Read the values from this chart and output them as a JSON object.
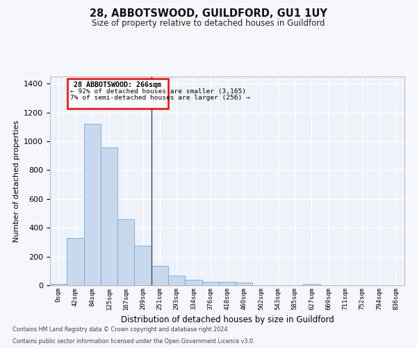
{
  "title": "28, ABBOTSWOOD, GUILDFORD, GU1 1UY",
  "subtitle": "Size of property relative to detached houses in Guildford",
  "xlabel": "Distribution of detached houses by size in Guildford",
  "ylabel": "Number of detached properties",
  "bar_color": "#c8d9ee",
  "bar_edge_color": "#6aaad4",
  "background_color": "#eef2fa",
  "grid_color": "#ffffff",
  "fig_background": "#f5f7fd",
  "categories": [
    "0sqm",
    "42sqm",
    "84sqm",
    "125sqm",
    "167sqm",
    "209sqm",
    "251sqm",
    "293sqm",
    "334sqm",
    "376sqm",
    "418sqm",
    "460sqm",
    "502sqm",
    "543sqm",
    "585sqm",
    "627sqm",
    "669sqm",
    "711sqm",
    "752sqm",
    "794sqm",
    "836sqm"
  ],
  "values": [
    10,
    330,
    1120,
    955,
    460,
    275,
    135,
    70,
    40,
    25,
    25,
    20,
    0,
    0,
    0,
    10,
    0,
    0,
    0,
    0,
    0
  ],
  "ylim": [
    0,
    1450
  ],
  "yticks": [
    0,
    200,
    400,
    600,
    800,
    1000,
    1200,
    1400
  ],
  "annotation_line1": "28 ABBOTSWOOD: 266sqm",
  "annotation_line2": "← 92% of detached houses are smaller (3,165)",
  "annotation_line3": "7% of semi-detached houses are larger (256) →",
  "vline_x_index": 5.5,
  "footer_line1": "Contains HM Land Registry data © Crown copyright and database right 2024.",
  "footer_line2": "Contains public sector information licensed under the Open Government Licence v3.0."
}
